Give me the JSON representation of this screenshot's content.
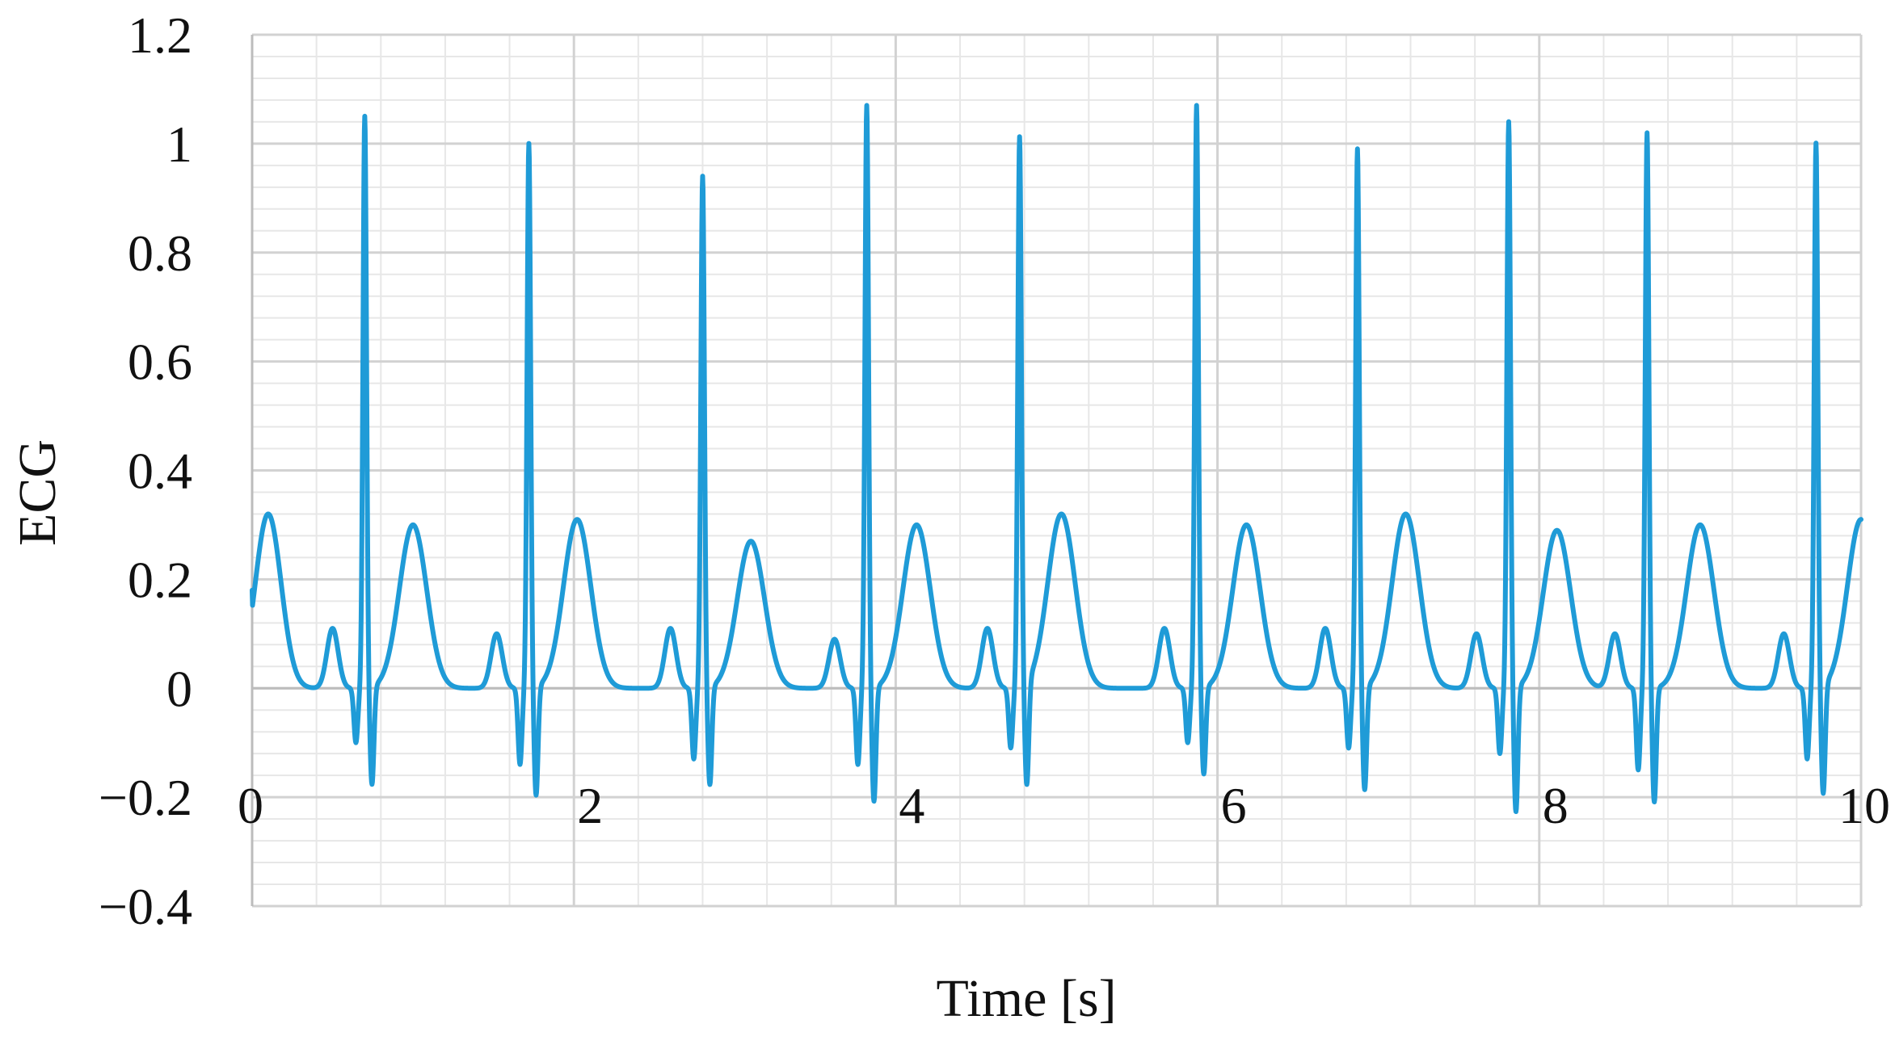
{
  "chart_data": {
    "type": "line",
    "title": "",
    "xlabel": "Time [s]",
    "ylabel": "ECG",
    "xlim": [
      0,
      10
    ],
    "ylim": [
      -0.4,
      1.2
    ],
    "x_ticks": [
      0,
      2,
      4,
      6,
      8,
      10
    ],
    "x_tick_labels": [
      "0",
      "2",
      "4",
      "6",
      "8",
      "10"
    ],
    "y_ticks": [
      -0.4,
      -0.2,
      0,
      0.2,
      0.4,
      0.6,
      0.8,
      1,
      1.2
    ],
    "y_tick_labels": [
      "−0.4",
      "−0.2",
      "0",
      "0.2",
      "0.4",
      "0.6",
      "0.8",
      "1",
      "1.2"
    ],
    "grid": true,
    "legend": "none",
    "line_color": "#1f9bd7",
    "series": [
      {
        "beats": [
          {
            "r_time": 0.7,
            "r_peak": 1.05,
            "s_min": -0.18,
            "q_min": -0.1,
            "p_peak": 0.11,
            "t_time": 1.0,
            "t_peak": 0.3
          },
          {
            "r_time": 1.72,
            "r_peak": 1.0,
            "s_min": -0.2,
            "q_min": -0.14,
            "p_peak": 0.1,
            "t_time": 2.02,
            "t_peak": 0.31
          },
          {
            "r_time": 2.8,
            "r_peak": 0.94,
            "s_min": -0.18,
            "q_min": -0.13,
            "p_peak": 0.11,
            "t_time": 3.1,
            "t_peak": 0.27
          },
          {
            "r_time": 3.82,
            "r_peak": 1.07,
            "s_min": -0.21,
            "q_min": -0.14,
            "p_peak": 0.09,
            "t_time": 4.13,
            "t_peak": 0.3
          },
          {
            "r_time": 4.77,
            "r_peak": 1.01,
            "s_min": -0.19,
            "q_min": -0.11,
            "p_peak": 0.11,
            "t_time": 5.03,
            "t_peak": 0.32
          },
          {
            "r_time": 5.87,
            "r_peak": 1.07,
            "s_min": -0.16,
            "q_min": -0.1,
            "p_peak": 0.11,
            "t_time": 6.18,
            "t_peak": 0.3
          },
          {
            "r_time": 6.87,
            "r_peak": 0.99,
            "s_min": -0.19,
            "q_min": -0.11,
            "p_peak": 0.11,
            "t_time": 7.17,
            "t_peak": 0.32
          },
          {
            "r_time": 7.81,
            "r_peak": 1.04,
            "s_min": -0.23,
            "q_min": -0.12,
            "p_peak": 0.1,
            "t_time": 8.11,
            "t_peak": 0.29
          },
          {
            "r_time": 8.67,
            "r_peak": 1.02,
            "s_min": -0.21,
            "q_min": -0.15,
            "p_peak": 0.1,
            "t_time": 9.0,
            "t_peak": 0.3
          },
          {
            "r_time": 9.72,
            "r_peak": 1.0,
            "s_min": -0.2,
            "q_min": -0.13,
            "p_peak": 0.1,
            "t_time": 10.0,
            "t_peak": 0.31
          }
        ],
        "start_value": 0.18,
        "first_t_time": 0.1,
        "first_t_peak": 0.32,
        "end_value": 0.31
      }
    ]
  }
}
